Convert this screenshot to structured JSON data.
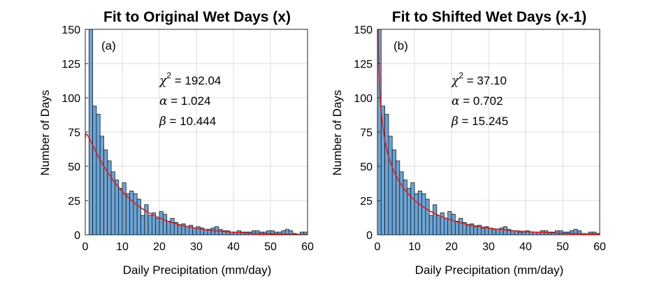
{
  "chart_data": [
    {
      "type": "bar",
      "title": "Fit to Original Wet Days (x)",
      "panel_label": "(a)",
      "xlabel": "Daily Precipitation (mm/day)",
      "ylabel": "Number of Days",
      "xlim": [
        0,
        60
      ],
      "ylim": [
        0,
        150
      ],
      "xticks": [
        "0",
        "10",
        "20",
        "30",
        "40",
        "50",
        "60"
      ],
      "yticks": [
        "0",
        "25",
        "50",
        "75",
        "100",
        "125",
        "150"
      ],
      "grid": true,
      "bin_width": 1,
      "bin_start": 1,
      "values": [
        150,
        94,
        88,
        72,
        62,
        54,
        46,
        40,
        34,
        38,
        30,
        32,
        30,
        26,
        14,
        22,
        14,
        16,
        12,
        17,
        15,
        10,
        12,
        9,
        7,
        8,
        6,
        7,
        5,
        6,
        5,
        4,
        4,
        5,
        6,
        4,
        3,
        3,
        2,
        2,
        3,
        2,
        2,
        2,
        3,
        3,
        2,
        2,
        3,
        3,
        2,
        2,
        3,
        4,
        3,
        1,
        0,
        2,
        2,
        1
      ],
      "fit": {
        "type": "gamma",
        "alpha": 1.024,
        "beta": 10.444,
        "scale": 850,
        "shift": 0
      },
      "stats": {
        "chi_label": "χ",
        "chi_sup": "2",
        "chi_value": " = 192.04",
        "alpha_label": "α",
        "alpha_value": " = 1.024",
        "beta_label": "β",
        "beta_value": " = 10.444"
      },
      "colors": {
        "bar_fill": "#6ba5d7",
        "bar_edge": "#1a1a1a",
        "fit_line": "#e41a1c"
      }
    },
    {
      "type": "bar",
      "title": "Fit to Shifted Wet Days (x-1)",
      "panel_label": "(b)",
      "xlabel": "Daily Precipitation (mm/day)",
      "ylabel": "Number of Days",
      "xlim": [
        0,
        60
      ],
      "ylim": [
        0,
        150
      ],
      "xticks": [
        "0",
        "10",
        "20",
        "30",
        "40",
        "50",
        "60"
      ],
      "yticks": [
        "0",
        "25",
        "50",
        "75",
        "100",
        "125",
        "150"
      ],
      "grid": true,
      "bin_width": 1,
      "bin_start": 0,
      "values": [
        150,
        94,
        88,
        72,
        62,
        54,
        46,
        40,
        34,
        38,
        30,
        32,
        30,
        26,
        14,
        22,
        14,
        16,
        12,
        17,
        15,
        10,
        12,
        9,
        7,
        8,
        6,
        7,
        5,
        6,
        5,
        4,
        4,
        5,
        6,
        4,
        3,
        3,
        2,
        2,
        3,
        2,
        2,
        2,
        3,
        3,
        2,
        2,
        3,
        3,
        2,
        2,
        3,
        4,
        3,
        1,
        0,
        2,
        2,
        1
      ],
      "fit": {
        "type": "gamma",
        "alpha": 0.702,
        "beta": 15.245,
        "scale": 850,
        "shift": 0
      },
      "stats": {
        "chi_label": "χ",
        "chi_sup": "2",
        "chi_value": " = 37.10",
        "alpha_label": "α",
        "alpha_value": " = 0.702",
        "beta_label": "β",
        "beta_value": " = 15.245"
      },
      "colors": {
        "bar_fill": "#6ba5d7",
        "bar_edge": "#1a1a1a",
        "fit_line": "#e41a1c"
      }
    }
  ]
}
